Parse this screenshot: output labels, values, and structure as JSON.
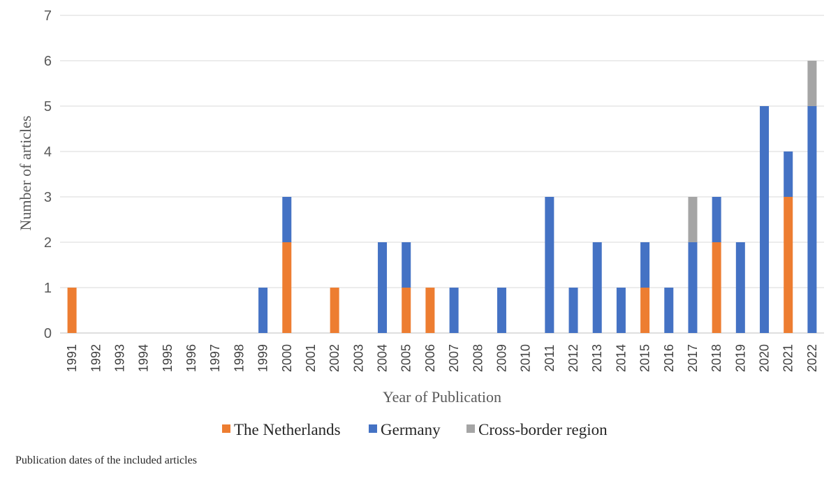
{
  "caption": "Publication dates of the included articles",
  "chart_data": {
    "type": "bar",
    "stacked": true,
    "title": "",
    "xlabel": "Year of Publication",
    "ylabel": "Number of articles",
    "ylim": [
      0,
      7
    ],
    "yticks": [
      0,
      1,
      2,
      3,
      4,
      5,
      6,
      7
    ],
    "grid": true,
    "legend_position": "bottom",
    "categories": [
      "1991",
      "1992",
      "1993",
      "1994",
      "1995",
      "1996",
      "1997",
      "1998",
      "1999",
      "2000",
      "2001",
      "2002",
      "2003",
      "2004",
      "2005",
      "2006",
      "2007",
      "2008",
      "2009",
      "2010",
      "2011",
      "2012",
      "2013",
      "2014",
      "2015",
      "2016",
      "2017",
      "2018",
      "2019",
      "2020",
      "2021",
      "2022"
    ],
    "series": [
      {
        "name": "The Netherlands",
        "color": "#ED7D31",
        "values": [
          1,
          0,
          0,
          0,
          0,
          0,
          0,
          0,
          0,
          2,
          0,
          1,
          0,
          0,
          1,
          1,
          0,
          0,
          0,
          0,
          0,
          0,
          0,
          0,
          1,
          0,
          0,
          2,
          0,
          0,
          3,
          0
        ]
      },
      {
        "name": "Germany",
        "color": "#4472C4",
        "values": [
          0,
          0,
          0,
          0,
          0,
          0,
          0,
          0,
          1,
          1,
          0,
          0,
          0,
          2,
          1,
          0,
          1,
          0,
          1,
          0,
          3,
          1,
          2,
          1,
          1,
          1,
          2,
          1,
          2,
          5,
          1,
          5
        ]
      },
      {
        "name": "Cross-border region",
        "color": "#A5A5A5",
        "values": [
          0,
          0,
          0,
          0,
          0,
          0,
          0,
          0,
          0,
          0,
          0,
          0,
          0,
          0,
          0,
          0,
          0,
          0,
          0,
          0,
          0,
          0,
          0,
          0,
          0,
          0,
          1,
          0,
          0,
          0,
          0,
          1
        ]
      }
    ]
  }
}
